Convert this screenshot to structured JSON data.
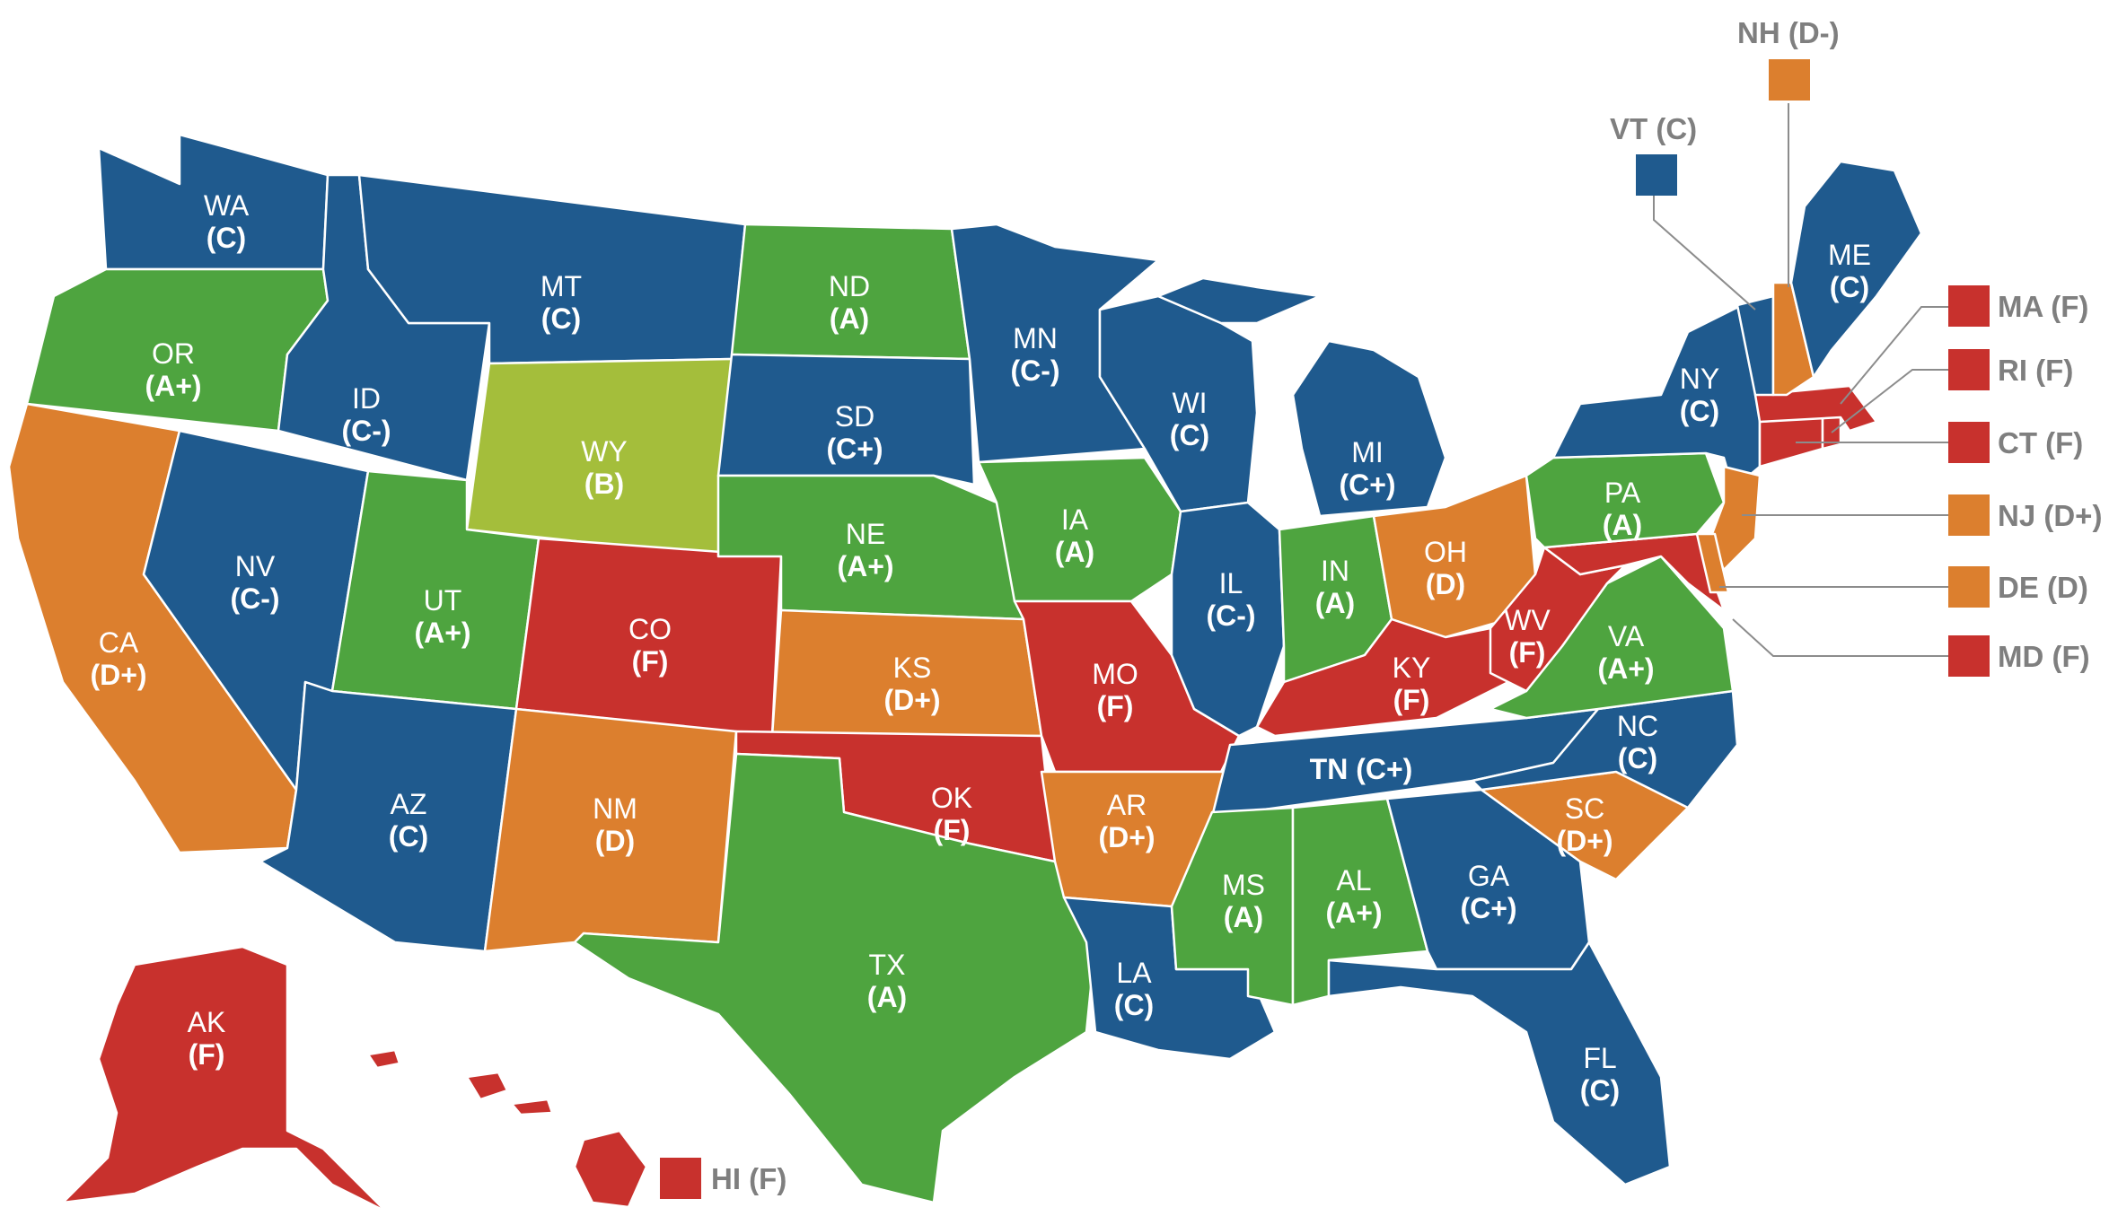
{
  "colors": {
    "A+": "#4ea43f",
    "A": "#4ea43f",
    "B": "#a4be3b",
    "C+": "#1f5a8e",
    "C": "#1f5a8e",
    "C-": "#1f5a8e",
    "D+": "#dc7f2e",
    "D": "#dc7f2e",
    "D-": "#dc7f2e",
    "F": "#c8312d"
  },
  "states": {
    "WA": {
      "abbr": "WA",
      "grade": "(C)"
    },
    "OR": {
      "abbr": "OR",
      "grade": "(A+)"
    },
    "CA": {
      "abbr": "CA",
      "grade": "(D+)"
    },
    "ID": {
      "abbr": "ID",
      "grade": "(C-)"
    },
    "NV": {
      "abbr": "NV",
      "grade": "(C-)"
    },
    "MT": {
      "abbr": "MT",
      "grade": "(C)"
    },
    "WY": {
      "abbr": "WY",
      "grade": "(B)"
    },
    "UT": {
      "abbr": "UT",
      "grade": "(A+)"
    },
    "AZ": {
      "abbr": "AZ",
      "grade": "(C)"
    },
    "CO": {
      "abbr": "CO",
      "grade": "(F)"
    },
    "NM": {
      "abbr": "NM",
      "grade": "(D)"
    },
    "ND": {
      "abbr": "ND",
      "grade": "(A)"
    },
    "SD": {
      "abbr": "SD",
      "grade": "(C+)"
    },
    "NE": {
      "abbr": "NE",
      "grade": "(A+)"
    },
    "KS": {
      "abbr": "KS",
      "grade": "(D+)"
    },
    "OK": {
      "abbr": "OK",
      "grade": "(F)"
    },
    "TX": {
      "abbr": "TX",
      "grade": "(A)"
    },
    "MN": {
      "abbr": "MN",
      "grade": "(C-)"
    },
    "IA": {
      "abbr": "IA",
      "grade": "(A)"
    },
    "MO": {
      "abbr": "MO",
      "grade": "(F)"
    },
    "AR": {
      "abbr": "AR",
      "grade": "(D+)"
    },
    "LA": {
      "abbr": "LA",
      "grade": "(C)"
    },
    "WI": {
      "abbr": "WI",
      "grade": "(C)"
    },
    "IL": {
      "abbr": "IL",
      "grade": "(C-)"
    },
    "MI": {
      "abbr": "MI",
      "grade": "(C+)"
    },
    "IN": {
      "abbr": "IN",
      "grade": "(A)"
    },
    "OH": {
      "abbr": "OH",
      "grade": "(D)"
    },
    "KY": {
      "abbr": "KY",
      "grade": "(F)"
    },
    "TN": {
      "label": "TN (C+)"
    },
    "MS": {
      "abbr": "MS",
      "grade": "(A)"
    },
    "AL": {
      "abbr": "AL",
      "grade": "(A+)"
    },
    "GA": {
      "abbr": "GA",
      "grade": "(C+)"
    },
    "FL": {
      "abbr": "FL",
      "grade": "(C)"
    },
    "SC": {
      "abbr": "SC",
      "grade": "(D+)"
    },
    "NC": {
      "abbr": "NC",
      "grade": "(C)"
    },
    "VA": {
      "abbr": "VA",
      "grade": "(A+)"
    },
    "WV": {
      "abbr": "WV",
      "grade": "(F)"
    },
    "PA": {
      "abbr": "PA",
      "grade": "(A)"
    },
    "NY": {
      "abbr": "NY",
      "grade": "(C)"
    },
    "ME": {
      "abbr": "ME",
      "grade": "(C)"
    },
    "AK": {
      "abbr": "AK",
      "grade": "(F)"
    }
  },
  "callouts": {
    "NH": "NH (D-)",
    "VT": "VT (C)",
    "MA": "MA (F)",
    "RI": "RI (F)",
    "CT": "CT (F)",
    "NJ": "NJ (D+)",
    "DE": "DE (D)",
    "MD": "MD (F)",
    "HI": "HI (F)"
  }
}
